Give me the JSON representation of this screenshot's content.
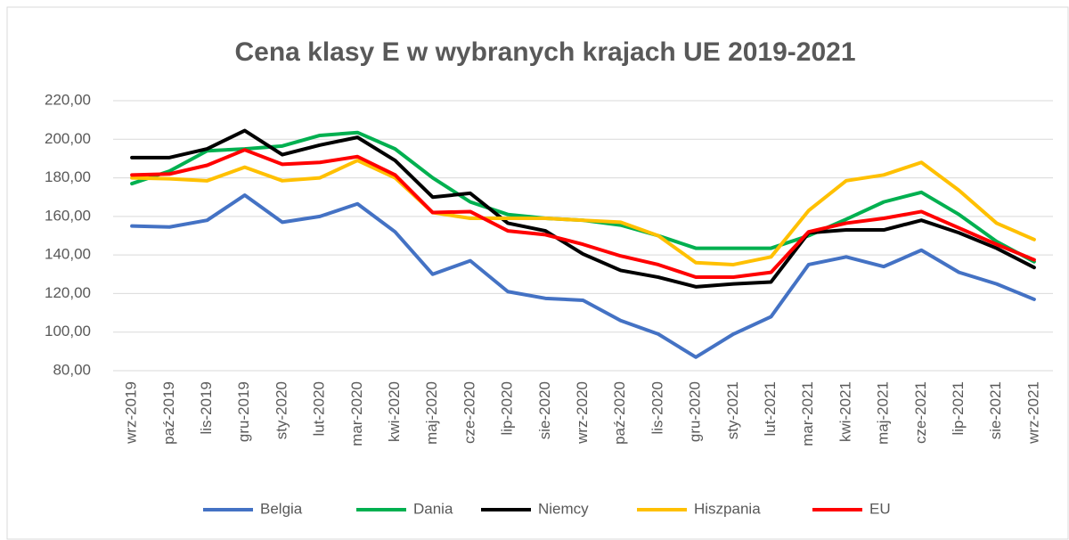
{
  "chart_data": {
    "type": "line",
    "title": "Cena klasy E w wybranych krajach UE 2019-2021",
    "categories": [
      "wrz-2019",
      "paź-2019",
      "lis-2019",
      "gru-2019",
      "sty-2020",
      "lut-2020",
      "mar-2020",
      "kwi-2020",
      "maj-2020",
      "cze-2020",
      "lip-2020",
      "sie-2020",
      "wrz-2020",
      "paź-2020",
      "lis-2020",
      "gru-2020",
      "sty-2021",
      "lut-2021",
      "mar-2021",
      "kwi-2021",
      "maj-2021",
      "cze-2021",
      "lip-2021",
      "sie-2021",
      "wrz-2021"
    ],
    "series": [
      {
        "name": "Belgia",
        "color": "#4472c4",
        "values": [
          155,
          154.5,
          158,
          171,
          157,
          160,
          166.5,
          152,
          130,
          137,
          121,
          117.5,
          116.5,
          106,
          99,
          87,
          99,
          108,
          135,
          139,
          134,
          142.5,
          131,
          125,
          117
        ]
      },
      {
        "name": "Dania",
        "color": "#00b050",
        "values": [
          177,
          183.5,
          194,
          195,
          196.5,
          202,
          203.5,
          195,
          180,
          167.5,
          161,
          159,
          158,
          155.5,
          150,
          143.5,
          143.5,
          143.5,
          150,
          158.5,
          167.5,
          172.5,
          161,
          147,
          136.5
        ]
      },
      {
        "name": "Niemcy",
        "color": "#000000",
        "values": [
          190.5,
          190.5,
          195,
          204.5,
          192,
          197,
          201,
          189,
          170,
          172,
          156.5,
          152.5,
          140.5,
          132,
          128.5,
          123.5,
          125,
          126,
          151.5,
          153,
          153,
          158,
          151.5,
          143.5,
          133.5
        ]
      },
      {
        "name": "Hiszpania",
        "color": "#ffc000",
        "values": [
          180,
          179.5,
          178.5,
          185.5,
          178.5,
          180,
          189,
          180,
          162,
          159,
          159,
          159,
          158,
          157,
          150,
          136,
          135,
          139,
          163,
          178.5,
          181.5,
          188,
          173.5,
          156.5,
          148
        ]
      },
      {
        "name": "EU",
        "color": "#ff0000",
        "values": [
          181.5,
          182,
          186.5,
          194.5,
          187,
          188,
          191,
          181.5,
          162,
          162.5,
          152.5,
          150.5,
          145.5,
          139.5,
          135,
          128.5,
          128.5,
          131,
          152,
          156.5,
          159,
          162.5,
          154,
          145.5,
          137.5
        ]
      }
    ],
    "ylim": [
      80,
      220
    ],
    "yticks": [
      {
        "value": 80,
        "label": "80,00"
      },
      {
        "value": 100,
        "label": "100,00"
      },
      {
        "value": 120,
        "label": "120,00"
      },
      {
        "value": 140,
        "label": "140,00"
      },
      {
        "value": 160,
        "label": "160,00"
      },
      {
        "value": 180,
        "label": "180,00"
      },
      {
        "value": 200,
        "label": "200,00"
      },
      {
        "value": 220,
        "label": "220,00"
      }
    ],
    "grid": true,
    "legend": "bottom"
  }
}
